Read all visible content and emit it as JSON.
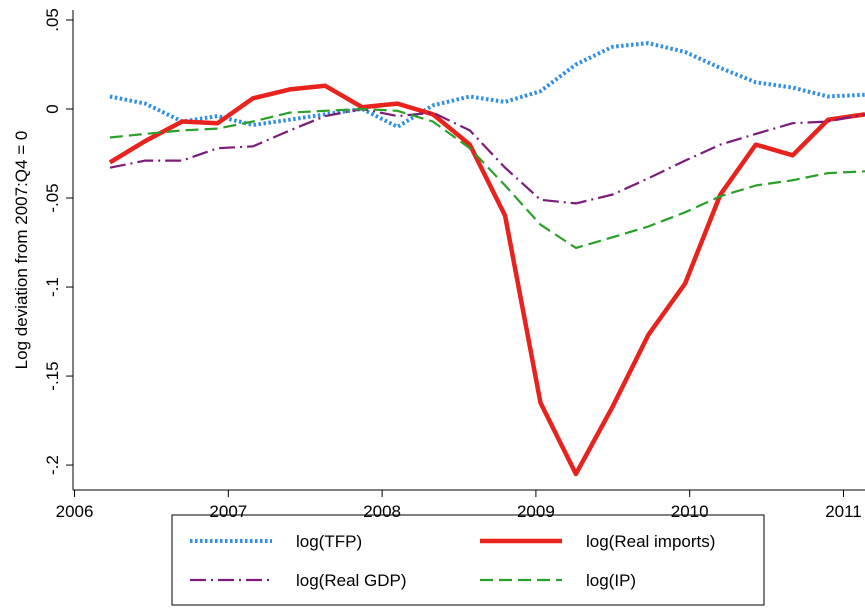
{
  "chart_data": {
    "type": "line",
    "y_label": "Log deviation from 2007:Q4 = 0",
    "x": [
      2006.23,
      2006.46,
      2006.7,
      2006.93,
      2007.16,
      2007.4,
      2007.63,
      2007.87,
      2008.1,
      2008.33,
      2008.57,
      2008.8,
      2009.03,
      2009.26,
      2009.5,
      2009.73,
      2009.97,
      2010.2,
      2010.43,
      2010.67,
      2010.9,
      2011.14
    ],
    "series": [
      {
        "name": "log(TFP)",
        "color": "#2f8fe6",
        "style": "dotted",
        "values": [
          0.007,
          0.003,
          -0.007,
          -0.004,
          -0.009,
          -0.006,
          -0.003,
          0.0,
          -0.01,
          0.002,
          0.007,
          0.004,
          0.01,
          0.025,
          0.035,
          0.037,
          0.032,
          0.023,
          0.015,
          0.012,
          0.007,
          0.008
        ]
      },
      {
        "name": "log(Real imports)",
        "color": "#e8231d",
        "style": "solid",
        "values": [
          -0.03,
          -0.018,
          -0.007,
          -0.008,
          0.006,
          0.011,
          0.013,
          0.001,
          0.003,
          -0.003,
          -0.02,
          -0.06,
          -0.165,
          -0.205,
          -0.167,
          -0.127,
          -0.098,
          -0.048,
          -0.02,
          -0.026,
          -0.006,
          -0.003
        ]
      },
      {
        "name": "log(Real GDP)",
        "color": "#7b1c7b",
        "style": "dashdot",
        "values": [
          -0.033,
          -0.029,
          -0.029,
          -0.022,
          -0.021,
          -0.012,
          -0.004,
          0.0,
          -0.004,
          -0.002,
          -0.012,
          -0.033,
          -0.051,
          -0.053,
          -0.048,
          -0.039,
          -0.029,
          -0.02,
          -0.014,
          -0.008,
          -0.007,
          -0.003
        ]
      },
      {
        "name": "log(IP)",
        "color": "#2aa02a",
        "style": "dashed",
        "values": [
          -0.016,
          -0.014,
          -0.012,
          -0.011,
          -0.007,
          -0.002,
          -0.001,
          0.0,
          -0.001,
          -0.007,
          -0.022,
          -0.043,
          -0.065,
          -0.078,
          -0.072,
          -0.066,
          -0.058,
          -0.049,
          -0.043,
          -0.04,
          -0.036,
          -0.035
        ]
      }
    ],
    "xlim": [
      2005.99,
      2011.14
    ],
    "xticks": [
      2006,
      2007,
      2008,
      2009,
      2010,
      2011
    ],
    "ylim": [
      -0.214,
      0.0556
    ],
    "yticks": [
      {
        "value": 0.05,
        "label": ".05"
      },
      0,
      {
        "value": -0.05,
        "label": "-.05"
      },
      {
        "value": -0.1,
        "label": "-.1"
      },
      {
        "value": -0.15,
        "label": "-.15"
      },
      {
        "value": -0.2,
        "label": "-.2"
      }
    ],
    "grid": false
  }
}
